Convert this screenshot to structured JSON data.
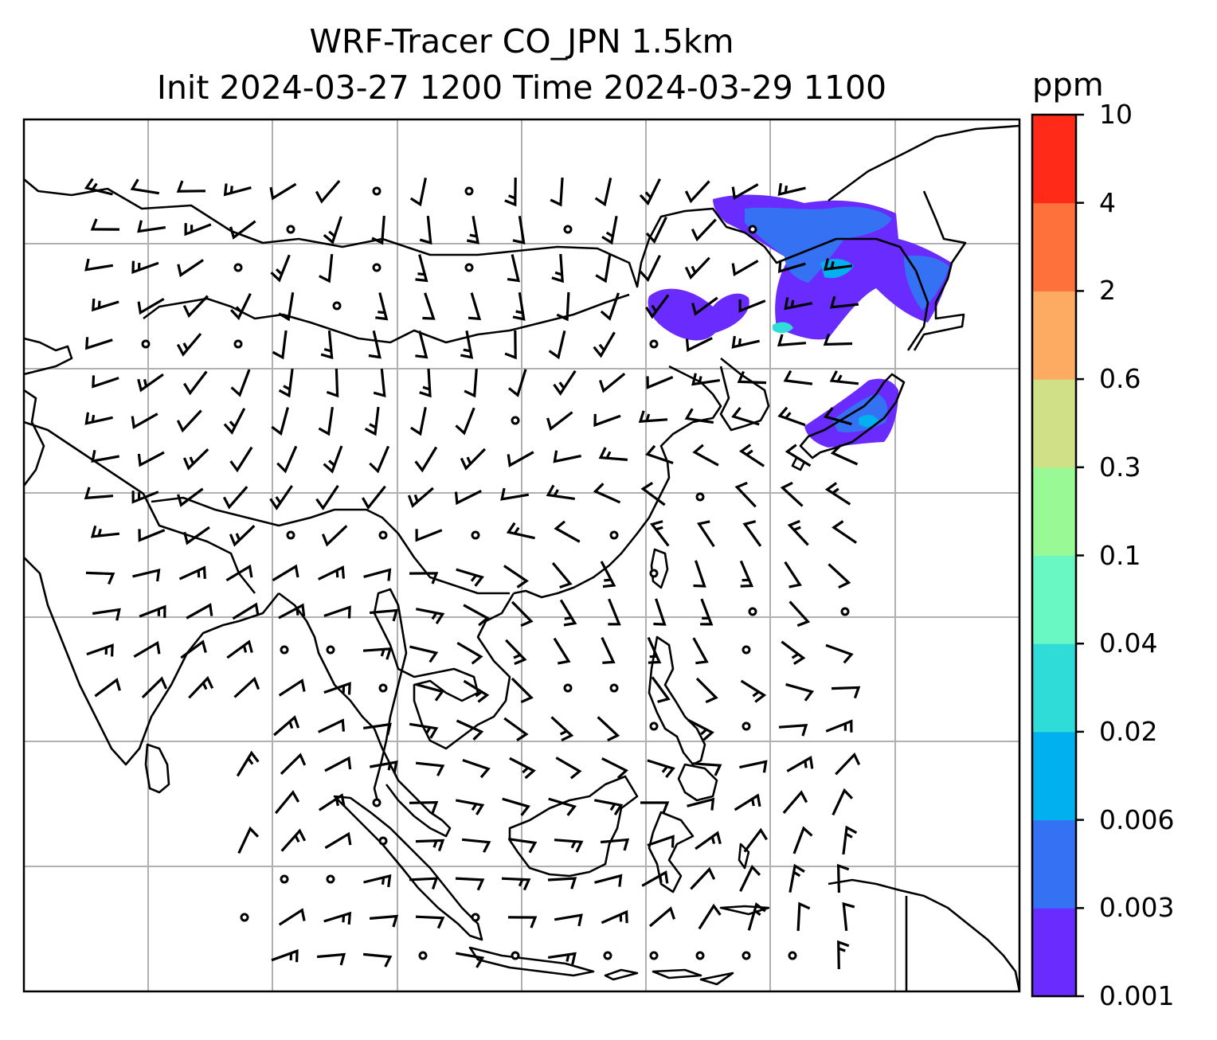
{
  "title": {
    "line1": "WRF-Tracer CO_JPN 1.5km",
    "line2": "Init 2024-03-27 1200 Time 2024-03-29 1100"
  },
  "colorbar": {
    "unit": "ppm",
    "levels": [
      "0.001",
      "0.003",
      "0.006",
      "0.02",
      "0.04",
      "0.1",
      "0.3",
      "0.6",
      "2",
      "4",
      "10"
    ],
    "colors": [
      "#6a2bff",
      "#3472f3",
      "#00b0ef",
      "#2fdcd7",
      "#69f8c3",
      "#98f995",
      "#d0e087",
      "#fdab62",
      "#fe713a",
      "#ff2a17"
    ]
  },
  "map": {
    "gridlines": true,
    "wind_barbs": true,
    "outline_color": "#000000",
    "grid_color": "#b0b0b0"
  }
}
